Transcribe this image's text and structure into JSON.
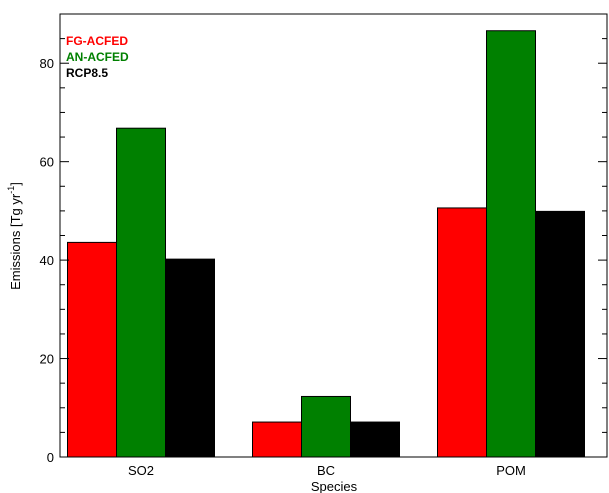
{
  "chart_data": {
    "type": "bar",
    "xlabel": "Species",
    "ylabel": "Emissions [Tg yr",
    "ylabel_sup": "-1",
    "ylabel_tail": "]",
    "ylim": [
      0,
      90
    ],
    "yticks": [
      0,
      20,
      40,
      60,
      80
    ],
    "categories": [
      "SO2",
      "BC",
      "POM"
    ],
    "series": [
      {
        "name": "FG-ACFED",
        "color": "#ff0000",
        "values": [
          43.6,
          7.1,
          50.6
        ]
      },
      {
        "name": "AN-ACFED",
        "color": "#008000",
        "values": [
          66.8,
          12.3,
          86.6
        ]
      },
      {
        "name": "RCP8.5",
        "color": "#000000",
        "values": [
          40.2,
          7.1,
          49.9
        ]
      }
    ],
    "legend_position": "top-left",
    "grid": false
  }
}
